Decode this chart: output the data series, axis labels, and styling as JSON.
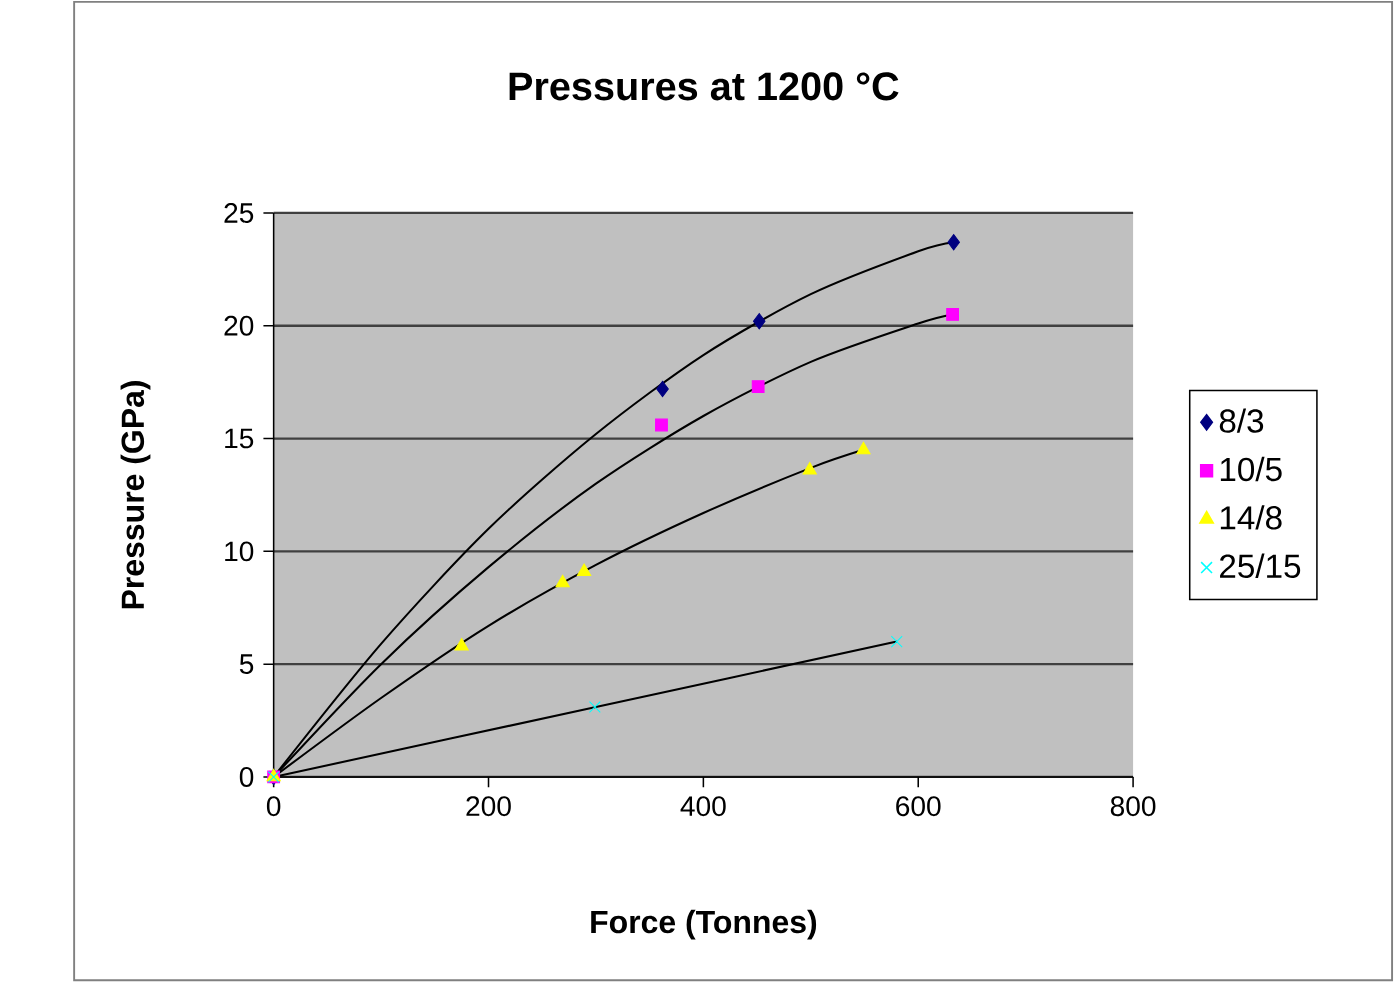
{
  "chart_data": {
    "type": "scatter",
    "title": "Pressures at 1200 °C",
    "xlabel": "Force (Tonnes)",
    "ylabel": "Pressure (GPa)",
    "xlim": [
      0,
      800
    ],
    "xticks": [
      0,
      200,
      400,
      600,
      800
    ],
    "ylim": [
      0,
      25
    ],
    "yticks": [
      0,
      5,
      10,
      15,
      20,
      25
    ],
    "grid": "y",
    "legend": "right",
    "series": [
      {
        "name": "8/3",
        "color": "#000080",
        "marker": "diamond",
        "x": [
          0,
          362,
          452,
          633
        ],
        "values": [
          0,
          17.2,
          20.2,
          23.7
        ]
      },
      {
        "name": "10/5",
        "color": "#ff00ff",
        "marker": "square",
        "x": [
          0,
          361,
          451,
          632
        ],
        "values": [
          0,
          15.6,
          17.3,
          20.5
        ]
      },
      {
        "name": "14/8",
        "color": "#ffff00",
        "marker": "triangle",
        "x": [
          0,
          175,
          269,
          289,
          499,
          549
        ],
        "values": [
          0,
          5.8,
          8.6,
          9.1,
          13.6,
          14.5
        ]
      },
      {
        "name": "25/15",
        "color": "#00ffff",
        "marker": "cross",
        "x": [
          0,
          299,
          580
        ],
        "values": [
          0,
          3.1,
          6.0
        ]
      },
      {
        "type": "line",
        "color": "#000000",
        "marker": "none",
        "line_style": "solid",
        "x": [
          0,
          100,
          200,
          300,
          400,
          500,
          600,
          633
        ],
        "values": [
          0,
          5.9,
          11.0,
          15.2,
          18.7,
          21.4,
          23.3,
          23.7
        ]
      },
      {
        "type": "line",
        "color": "#000000",
        "marker": "none",
        "line_style": "solid",
        "x": [
          0,
          100,
          200,
          300,
          400,
          500,
          600,
          632
        ],
        "values": [
          0,
          5.0,
          9.3,
          13.0,
          16.0,
          18.4,
          20.1,
          20.5
        ]
      },
      {
        "type": "line",
        "color": "#000000",
        "marker": "none",
        "line_style": "solid",
        "x": [
          0,
          100,
          200,
          300,
          400,
          500,
          549
        ],
        "values": [
          0,
          3.5,
          6.7,
          9.4,
          11.7,
          13.7,
          14.5
        ]
      },
      {
        "type": "line",
        "color": "#000000",
        "marker": "none",
        "line_style": "solid",
        "x": [
          0,
          300,
          580
        ],
        "values": [
          0,
          3.1,
          6.0
        ]
      }
    ]
  }
}
